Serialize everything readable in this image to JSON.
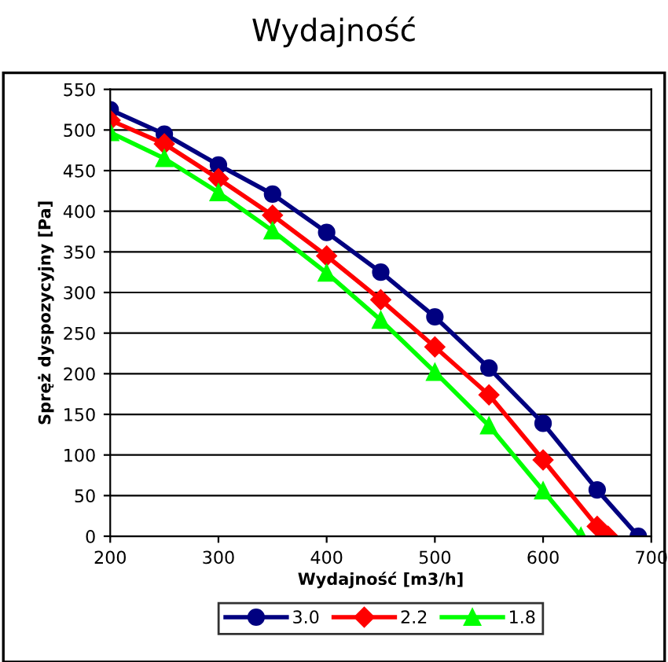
{
  "chart_data": {
    "type": "line",
    "title": "Wydajność",
    "xlabel": "Wydajność [m3/h]",
    "ylabel": "Spręż dyspozycyjny [Pa]",
    "series": [
      {
        "name": "3.0",
        "color": "#000080",
        "marker": "circle",
        "x": [
          200,
          250,
          300,
          350,
          400,
          450,
          500,
          550,
          600,
          650,
          688
        ],
        "values": [
          525,
          495,
          457,
          421,
          374,
          325,
          270,
          207,
          139,
          57,
          0
        ]
      },
      {
        "name": "2.2",
        "color": "#ff0000",
        "marker": "diamond",
        "x": [
          200,
          250,
          300,
          350,
          400,
          450,
          500,
          550,
          600,
          650,
          660
        ],
        "values": [
          512,
          483,
          440,
          395,
          345,
          291,
          233,
          174,
          94,
          12,
          0
        ]
      },
      {
        "name": "1.8",
        "color": "#00ff00",
        "marker": "triangle",
        "x": [
          200,
          250,
          300,
          350,
          400,
          450,
          500,
          550,
          600,
          635
        ],
        "values": [
          497,
          465,
          423,
          376,
          324,
          266,
          202,
          136,
          56,
          0
        ]
      }
    ],
    "xlim": [
      200,
      700
    ],
    "xticks": [
      200,
      300,
      400,
      500,
      600,
      700
    ],
    "ylim": [
      0,
      550
    ],
    "yticks": [
      0,
      50,
      100,
      150,
      200,
      250,
      300,
      350,
      400,
      450,
      500,
      550
    ],
    "grid": "y",
    "legend": "bottom",
    "line_style": "solid"
  }
}
